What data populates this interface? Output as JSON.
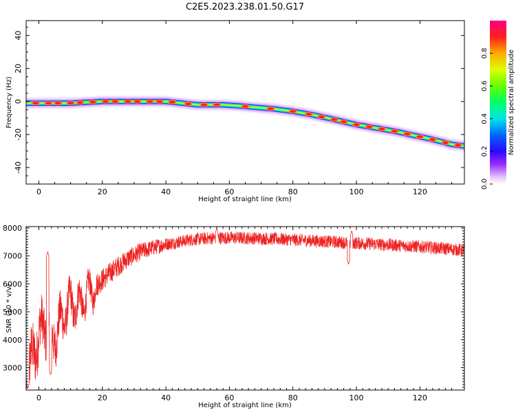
{
  "figure": {
    "title": "C2E5.2023.238.01.50.G17"
  },
  "chart_data": [
    {
      "type": "heatmap",
      "xlabel": "Height of straight line (km)",
      "ylabel": "Frequency (Hz)",
      "xlim": [
        -4,
        134
      ],
      "ylim": [
        -50,
        49
      ],
      "xticks": [
        0,
        20,
        40,
        60,
        80,
        100,
        120
      ],
      "yticks": [
        -40,
        -20,
        0,
        20,
        40
      ],
      "ridge": {
        "x": [
          -4,
          0,
          10,
          20,
          30,
          40,
          50,
          58,
          62,
          68,
          74,
          80,
          86,
          92,
          100,
          106,
          112,
          118,
          124,
          130,
          134
        ],
        "y": [
          -1,
          -1,
          -1,
          0,
          0,
          0,
          -2,
          -2,
          -2.5,
          -3.5,
          -4.5,
          -6,
          -8,
          -10.5,
          -14,
          -16,
          -18,
          -20.5,
          -23,
          -26,
          -27
        ]
      },
      "blobs_x": [
        -1,
        3,
        6,
        10,
        13,
        17,
        21,
        24,
        28,
        31,
        35,
        38,
        42,
        47,
        52,
        56,
        65,
        73,
        80,
        85,
        89,
        93,
        96,
        100,
        104,
        108,
        112,
        116,
        120,
        124,
        128,
        132
      ],
      "colorbar": {
        "label": "Normalized spectral amplitude",
        "range": [
          0,
          1
        ],
        "ticks": [
          "0.0",
          "0.2",
          "0.4",
          "0.6",
          "0.8"
        ]
      },
      "grid": false
    },
    {
      "type": "line",
      "xlabel": "Height of straight line (km)",
      "ylabel": "SNR (10 * v/v)",
      "xlim": [
        -4,
        134
      ],
      "ylim": [
        2200,
        8050
      ],
      "xticks": [
        0,
        20,
        40,
        60,
        80,
        100,
        120
      ],
      "yticks": [
        3000,
        4000,
        5000,
        6000,
        7000,
        8000
      ],
      "color": "#ee2222",
      "trend": {
        "x": [
          -4,
          -2,
          0,
          2,
          4,
          6,
          8,
          10,
          12,
          14,
          16,
          18,
          20,
          24,
          28,
          32,
          36,
          40,
          44,
          48,
          52,
          56,
          60,
          70,
          80,
          90,
          100,
          110,
          120,
          128,
          134
        ],
        "y": [
          2800,
          3300,
          4200,
          4500,
          3900,
          4400,
          4900,
          5300,
          5200,
          5400,
          5700,
          5950,
          6150,
          6550,
          6900,
          7150,
          7300,
          7420,
          7500,
          7580,
          7620,
          7650,
          7650,
          7630,
          7580,
          7520,
          7460,
          7400,
          7330,
          7260,
          7200
        ]
      },
      "peaks": [
        {
          "x": 2.8,
          "y": 7150
        },
        {
          "x": 56,
          "y": 8000
        },
        {
          "x": 98.5,
          "y": 7900
        }
      ],
      "dips": [
        {
          "x": -3.5,
          "y": 2250
        },
        {
          "x": 3.7,
          "y": 2750
        },
        {
          "x": 97.5,
          "y": 6700
        }
      ],
      "grid": false
    }
  ]
}
